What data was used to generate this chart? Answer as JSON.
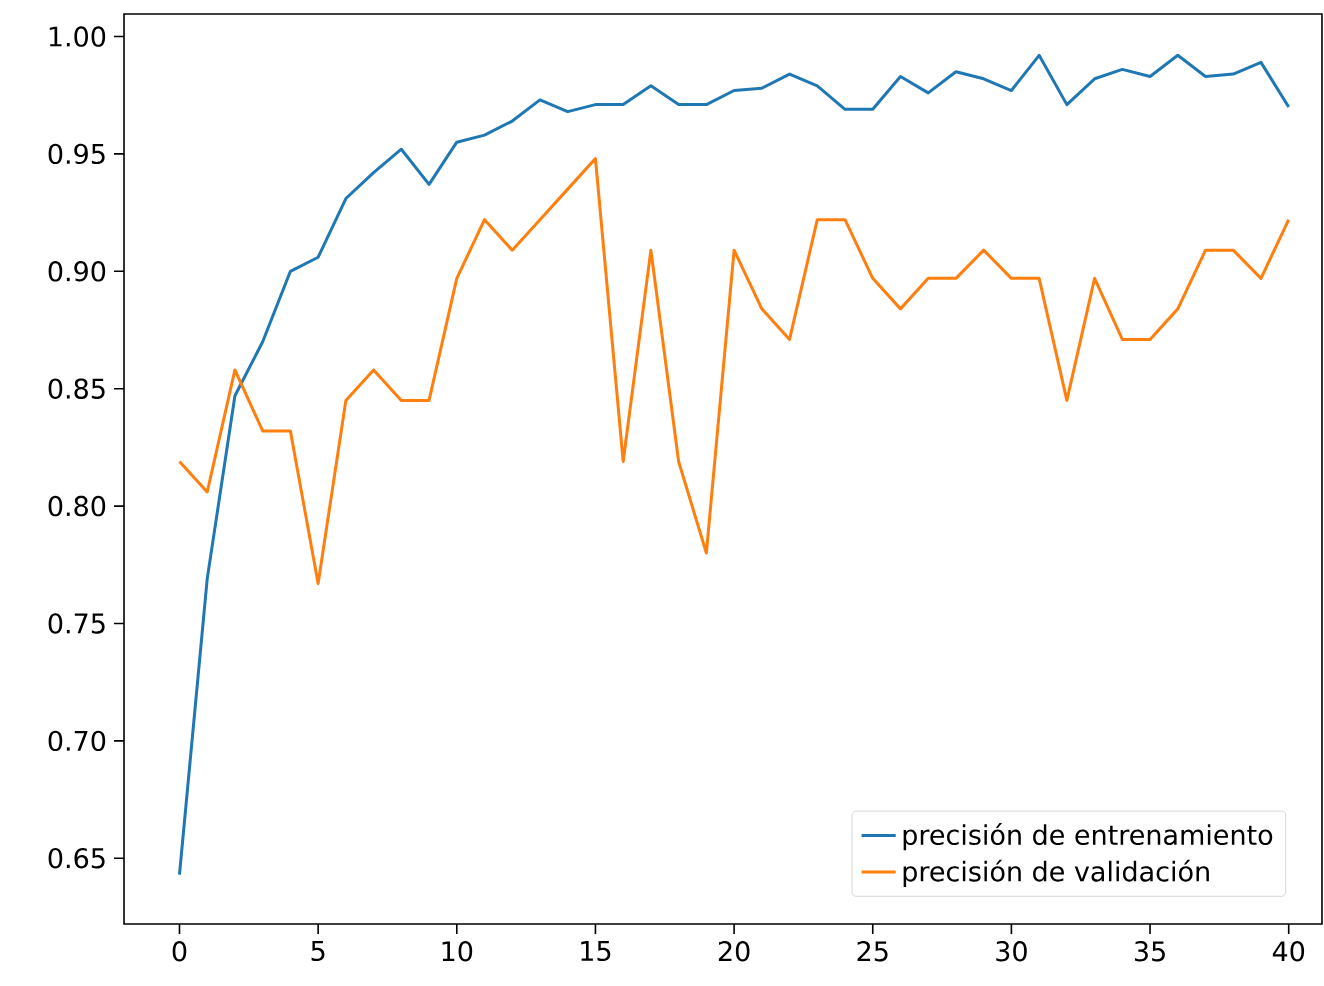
{
  "chart_data": {
    "type": "line",
    "x": [
      0,
      1,
      2,
      3,
      4,
      5,
      6,
      7,
      8,
      9,
      10,
      11,
      12,
      13,
      14,
      15,
      16,
      17,
      18,
      19,
      20,
      21,
      22,
      23,
      24,
      25,
      26,
      27,
      28,
      29,
      30,
      31,
      32,
      33,
      34,
      35,
      36,
      37,
      38,
      39,
      40
    ],
    "series": [
      {
        "name": "precisión de entrenamiento",
        "color": "#1f77b4",
        "values": [
          0.643,
          0.769,
          0.847,
          0.87,
          0.9,
          0.906,
          0.931,
          0.942,
          0.952,
          0.937,
          0.955,
          0.958,
          0.964,
          0.973,
          0.968,
          0.971,
          0.971,
          0.979,
          0.971,
          0.971,
          0.977,
          0.978,
          0.984,
          0.979,
          0.969,
          0.969,
          0.983,
          0.976,
          0.985,
          0.982,
          0.977,
          0.992,
          0.971,
          0.982,
          0.986,
          0.983,
          0.992,
          0.983,
          0.984,
          0.989,
          0.97
        ]
      },
      {
        "name": "precisión de validación",
        "color": "#ff7f0e",
        "values": [
          0.819,
          0.806,
          0.858,
          0.832,
          0.832,
          0.767,
          0.845,
          0.858,
          0.845,
          0.845,
          0.897,
          0.922,
          0.909,
          0.922,
          0.935,
          0.948,
          0.819,
          0.909,
          0.819,
          0.78,
          0.909,
          0.884,
          0.871,
          0.922,
          0.922,
          0.897,
          0.884,
          0.897,
          0.897,
          0.909,
          0.897,
          0.897,
          0.845,
          0.897,
          0.871,
          0.871,
          0.884,
          0.909,
          0.909,
          0.897,
          0.922
        ]
      }
    ],
    "xlim": [
      -2,
      41.2
    ],
    "ylim": [
      0.622,
      1.0096
    ],
    "xticks": [
      0,
      5,
      10,
      15,
      20,
      25,
      30,
      35,
      40
    ],
    "yticks": [
      {
        "value": 0.65,
        "label": "0.65"
      },
      {
        "value": 0.7,
        "label": "0.70"
      },
      {
        "value": 0.75,
        "label": "0.75"
      },
      {
        "value": 0.8,
        "label": "0.80"
      },
      {
        "value": 0.85,
        "label": "0.85"
      },
      {
        "value": 0.9,
        "label": "0.90"
      },
      {
        "value": 0.95,
        "label": "0.95"
      },
      {
        "value": 1.0,
        "label": "1.00"
      }
    ],
    "legend": "bottom right",
    "grid": false,
    "marker": "none",
    "line_style": "solid"
  }
}
